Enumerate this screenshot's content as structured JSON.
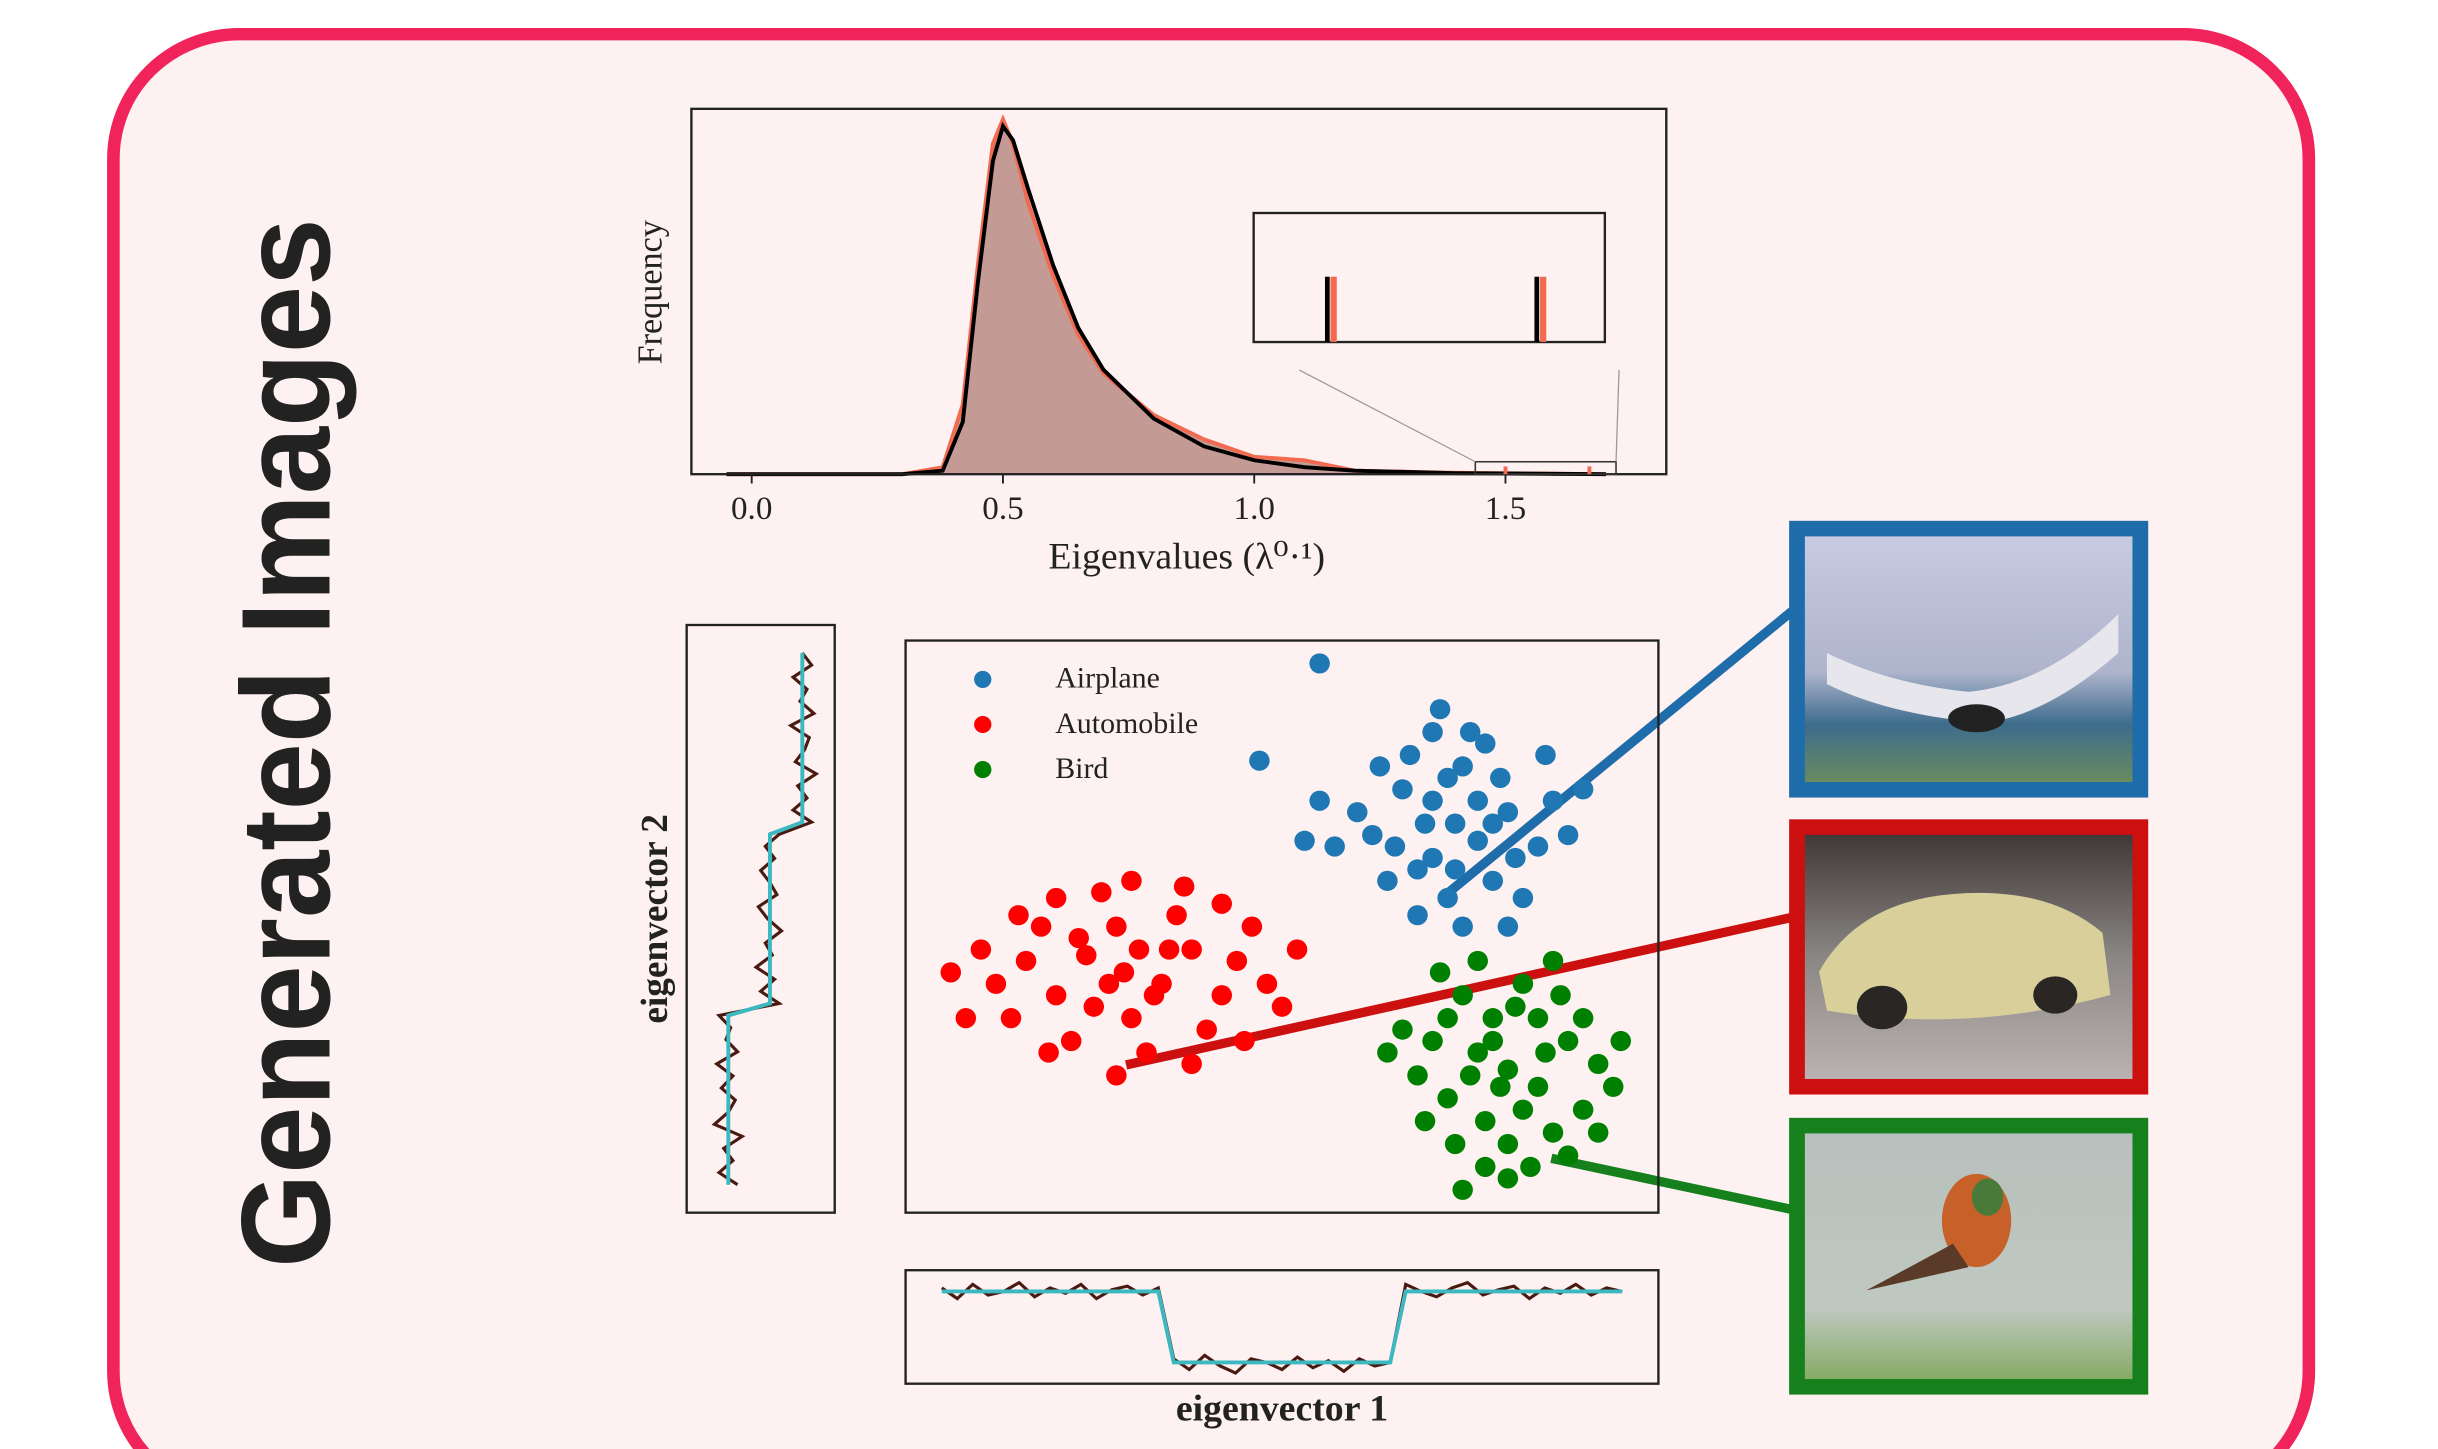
{
  "title": "Generated Images",
  "chart_data": [
    {
      "type": "density",
      "x_label": "Eigenvalues (λ⁰·¹)",
      "y_label": "Frequency",
      "x": [
        -0.05,
        0.3,
        0.38,
        0.42,
        0.45,
        0.48,
        0.5,
        0.52,
        0.55,
        0.6,
        0.65,
        0.7,
        0.8,
        0.9,
        1.0,
        1.1,
        1.2,
        1.4,
        1.7
      ],
      "series": [
        {
          "color": "#f26a4f",
          "fill": "#c49a94",
          "values": [
            0,
            0,
            0.02,
            0.2,
            0.6,
            0.95,
            1.02,
            0.95,
            0.78,
            0.57,
            0.4,
            0.29,
            0.17,
            0.1,
            0.05,
            0.04,
            0.01,
            0.004,
            0
          ]
        },
        {
          "color": "#000000",
          "values": [
            0,
            0,
            0.01,
            0.15,
            0.55,
            0.9,
            1.0,
            0.96,
            0.82,
            0.6,
            0.42,
            0.3,
            0.16,
            0.08,
            0.04,
            0.02,
            0.01,
            0.003,
            0
          ]
        }
      ],
      "spikes": [
        1.5,
        1.667
      ],
      "inset_xlim": [
        1.44,
        1.72
      ],
      "xlim": [
        -0.12,
        1.82
      ],
      "ylim": [
        0,
        1.05
      ],
      "xticks": [
        {
          "value": 0,
          "label": "0.0"
        },
        0.5,
        {
          "value": 1,
          "label": "1.0"
        },
        1.5
      ]
    },
    {
      "type": "scatter",
      "legend": "upper left",
      "xlim": [
        0,
        100
      ],
      "ylim": [
        0,
        100
      ],
      "series": [
        {
          "name": "Airplane",
          "color": "#1f77b4",
          "x": [
            73,
            70,
            76,
            68,
            80,
            74,
            66,
            78,
            72,
            84,
            62,
            75,
            70,
            79,
            67,
            82,
            64,
            76,
            71,
            86,
            60,
            74,
            69,
            81,
            77,
            65,
            72,
            85,
            63,
            78,
            57,
            88,
            73,
            68,
            80,
            55,
            90,
            47,
            53,
            70,
            55
          ],
          "y": [
            68,
            72,
            65,
            60,
            70,
            78,
            74,
            58,
            55,
            64,
            66,
            84,
            62,
            76,
            80,
            55,
            58,
            72,
            88,
            72,
            70,
            50,
            68,
            62,
            82,
            64,
            76,
            80,
            78,
            68,
            64,
            66,
            60,
            52,
            50,
            72,
            74,
            79,
            65,
            84,
            96
          ]
        },
        {
          "name": "Automobile",
          "color": "#ff0000",
          "x": [
            29,
            24,
            34,
            20,
            38,
            28,
            16,
            42,
            30,
            12,
            36,
            22,
            26,
            44,
            18,
            32,
            40,
            10,
            48,
            25,
            35,
            20,
            30,
            14,
            46,
            38,
            6,
            28,
            50,
            42,
            33,
            23,
            8,
            52,
            37,
            19,
            27,
            45,
            15,
            31
          ],
          "y": [
            42,
            45,
            40,
            38,
            46,
            50,
            44,
            38,
            34,
            40,
            52,
            30,
            56,
            44,
            50,
            28,
            32,
            46,
            40,
            36,
            46,
            55,
            58,
            34,
            50,
            26,
            42,
            24,
            36,
            54,
            38,
            48,
            34,
            46,
            57,
            28,
            40,
            30,
            52,
            46
          ]
        },
        {
          "name": "Bird",
          "color": "#008000",
          "x": [
            80,
            76,
            84,
            72,
            88,
            78,
            70,
            86,
            80,
            92,
            74,
            82,
            68,
            90,
            77,
            84,
            73,
            94,
            66,
            80,
            87,
            71,
            79,
            85,
            75,
            90,
            69,
            83,
            76,
            95,
            82,
            78,
            88,
            72,
            64,
            74,
            86,
            81,
            92,
            77
          ],
          "y": [
            25,
            28,
            22,
            20,
            30,
            34,
            30,
            14,
            12,
            26,
            38,
            40,
            24,
            18,
            16,
            34,
            12,
            22,
            32,
            6,
            38,
            42,
            22,
            28,
            24,
            34,
            16,
            8,
            44,
            30,
            18,
            30,
            10,
            34,
            28,
            4,
            44,
            36,
            14,
            8
          ]
        }
      ]
    },
    {
      "type": "line",
      "orientation": "vertical",
      "x_label": "eigenvector 2",
      "xlim": [
        -1.6,
        1.6
      ],
      "series": [
        {
          "color": "#4a1a12",
          "values": [
            -0.5,
            -0.9,
            -0.6,
            -0.8,
            -0.4,
            -1.0,
            -0.7,
            -0.55,
            -0.85,
            -0.6,
            -0.95,
            -0.5,
            -0.75,
            -0.65,
            -0.9,
            0.4,
            0.0,
            0.3,
            -0.1,
            0.25,
            0.1,
            0.45,
            0.15,
            -0.05,
            0.35,
            0.2,
            0.0,
            0.3,
            0.1,
            0.4,
            1.1,
            0.7,
            1.0,
            0.8,
            1.2,
            0.75,
            0.95,
            1.05,
            0.65,
            1.15,
            0.85,
            1.0,
            0.7,
            1.1,
            0.9
          ]
        },
        {
          "color": "#3bb8c0",
          "values": [
            -0.7,
            -0.7,
            -0.7,
            -0.7,
            -0.7,
            -0.7,
            -0.7,
            -0.7,
            -0.7,
            -0.7,
            -0.7,
            -0.7,
            -0.7,
            -0.7,
            -0.7,
            0.2,
            0.2,
            0.2,
            0.2,
            0.2,
            0.2,
            0.2,
            0.2,
            0.2,
            0.2,
            0.2,
            0.2,
            0.2,
            0.2,
            0.2,
            0.9,
            0.9,
            0.9,
            0.9,
            0.9,
            0.9,
            0.9,
            0.9,
            0.9,
            0.9,
            0.9,
            0.9,
            0.9,
            0.9,
            0.9
          ]
        }
      ]
    },
    {
      "type": "line",
      "orientation": "horizontal",
      "x_label": "eigenvector 1",
      "ylim": [
        -1.6,
        1.6
      ],
      "series": [
        {
          "color": "#4a1a12",
          "values": [
            1.1,
            0.8,
            1.2,
            0.9,
            1.0,
            1.25,
            0.85,
            1.1,
            0.95,
            1.2,
            0.8,
            1.05,
            1.15,
            0.9,
            1.1,
            -0.9,
            -1.2,
            -0.8,
            -1.1,
            -1.3,
            -0.9,
            -1.0,
            -1.2,
            -0.85,
            -1.15,
            -0.95,
            -1.25,
            -0.9,
            -1.1,
            -1.0,
            1.2,
            1.0,
            0.85,
            1.1,
            1.25,
            0.9,
            1.05,
            1.15,
            0.8,
            1.1,
            0.95,
            1.2,
            0.9,
            1.1,
            1.0
          ]
        },
        {
          "color": "#3bb8c0",
          "values": [
            1,
            1,
            1,
            1,
            1,
            1,
            1,
            1,
            1,
            1,
            1,
            1,
            1,
            1,
            1,
            -1,
            -1,
            -1,
            -1,
            -1,
            -1,
            -1,
            -1,
            -1,
            -1,
            -1,
            -1,
            -1,
            -1,
            -1,
            1,
            1,
            1,
            1,
            1,
            1,
            1,
            1,
            1,
            1,
            1,
            1,
            1,
            1,
            1
          ]
        }
      ]
    }
  ]
}
